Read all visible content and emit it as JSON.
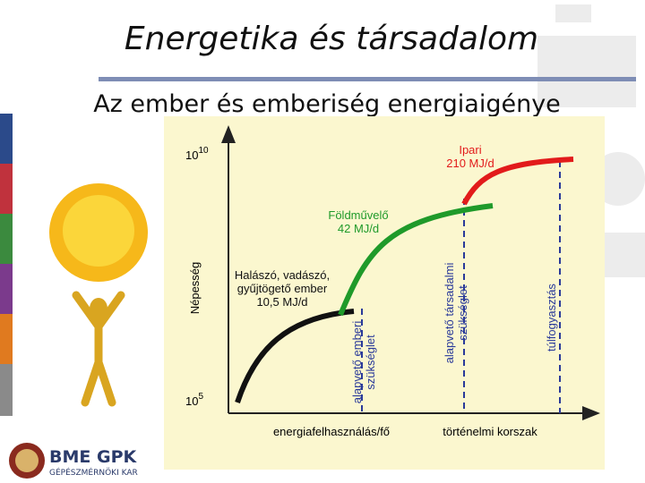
{
  "header": {
    "title": "Energetika és társadalom",
    "subtitle": "Az ember és emberiség energiaigénye"
  },
  "diagram": {
    "y_axis_label": "Népesség",
    "y_top": {
      "base": "10",
      "exp": "10"
    },
    "y_bottom": {
      "base": "10",
      "exp": "5"
    },
    "x_labels": [
      "energiafelhasználás/fő",
      "történelmi korszak"
    ],
    "stages": [
      {
        "lines": [
          "Halászó, vadászó,",
          "gyűjtögető ember",
          "10,5 MJ/d"
        ]
      },
      {
        "lines": [
          "Földművelő",
          "42 MJ/d"
        ]
      },
      {
        "lines": [
          "Ipari",
          "210 MJ/d"
        ]
      }
    ],
    "thresholds": [
      {
        "lines": [
          "alapvető emberi",
          "szükséglet"
        ]
      },
      {
        "lines": [
          "alapvető társadalmi",
          "szükséglet"
        ]
      },
      {
        "lines": [
          "túlfogyasztás"
        ]
      }
    ]
  },
  "logo": {
    "name": "BME GPK",
    "faculty": "GÉPÉSZMÉRNÖKI KAR"
  }
}
